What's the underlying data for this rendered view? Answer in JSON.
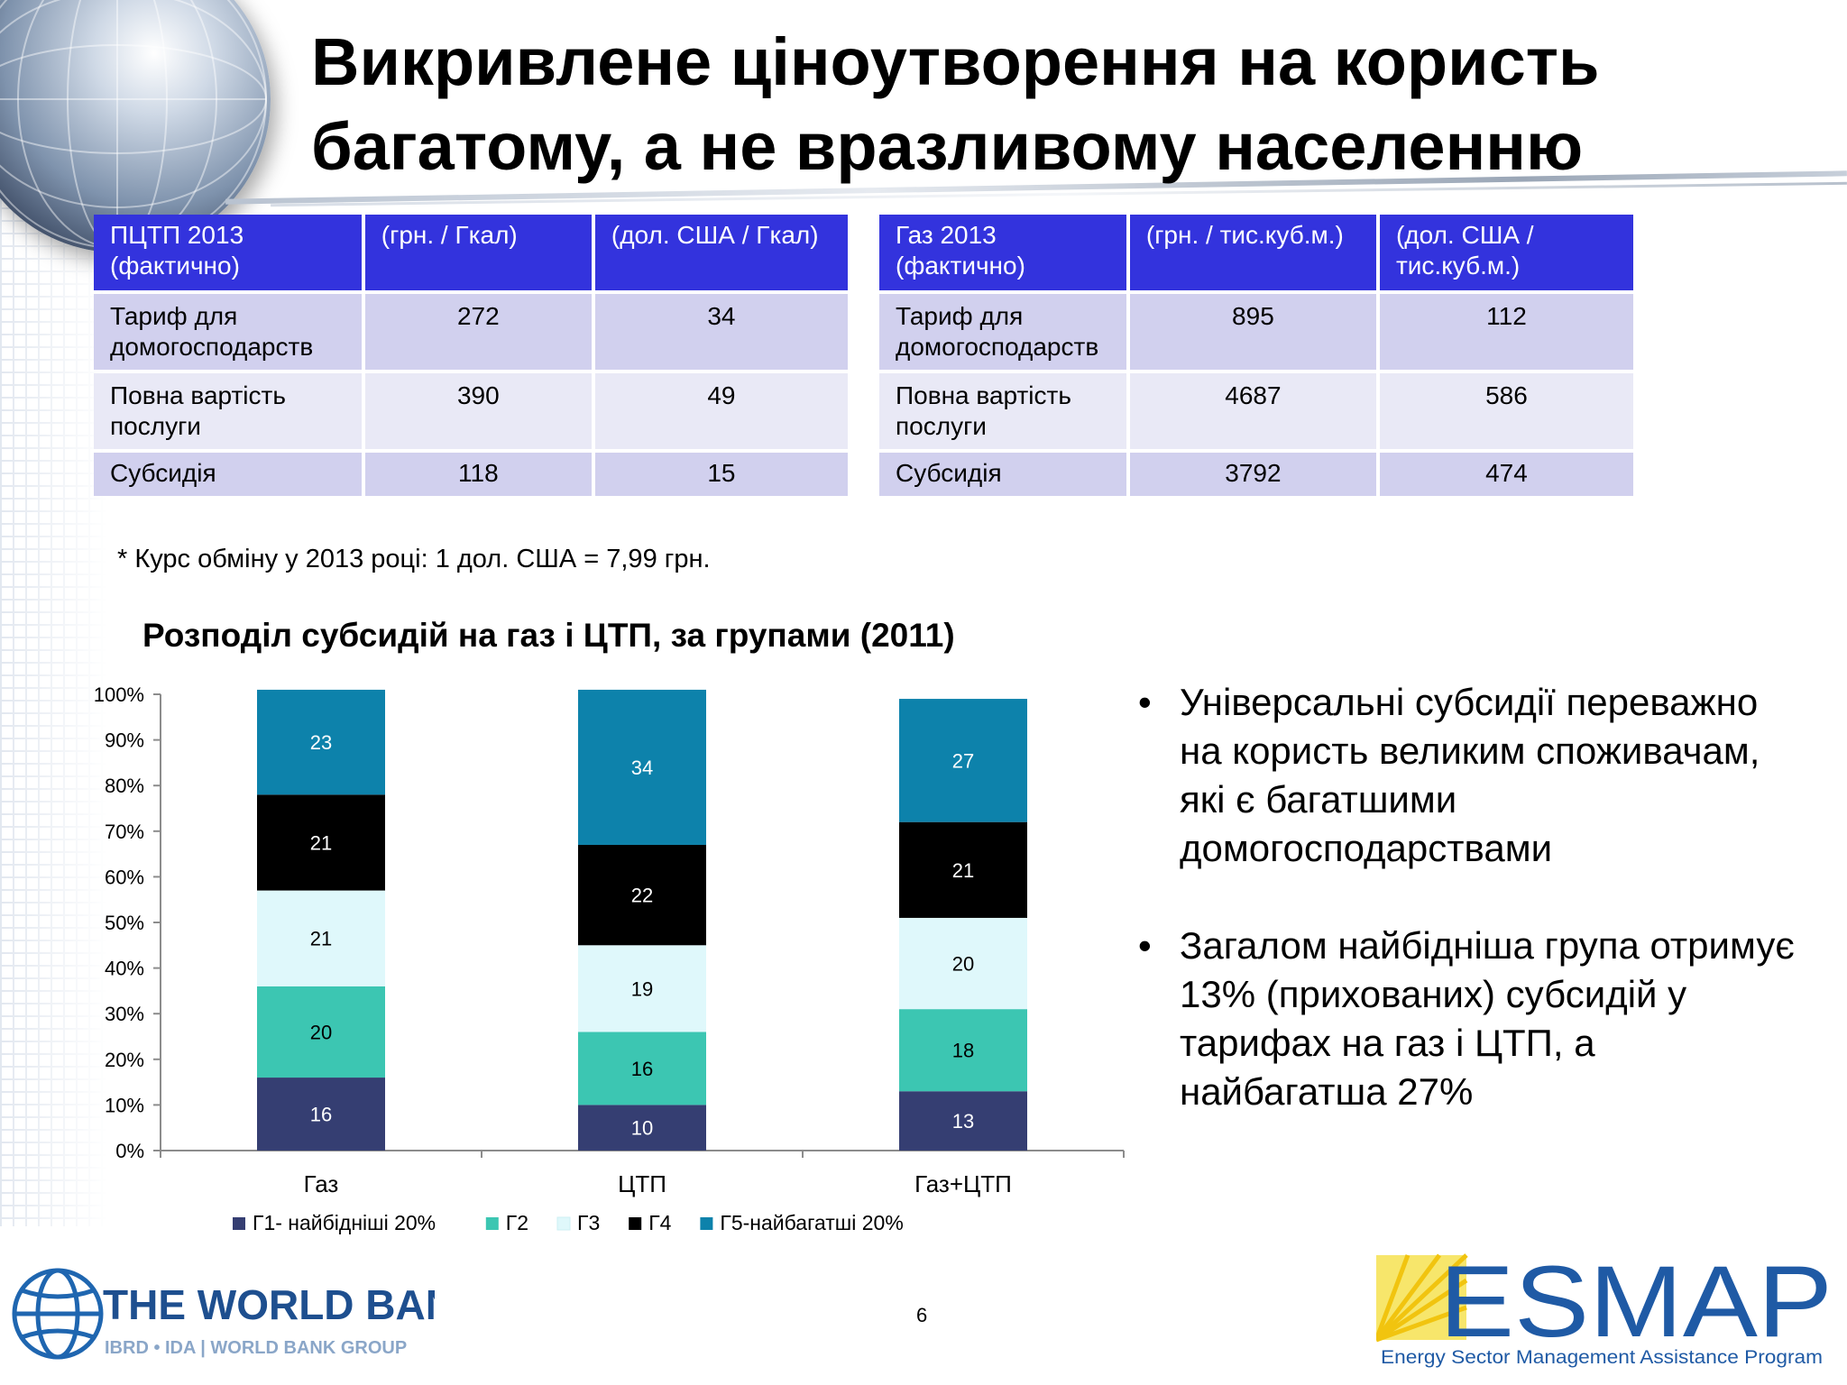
{
  "title": "Викривлене ціноутворення на користь багатому, а не вразливому населенню",
  "table_heat": {
    "headers": [
      "ПЦТП 2013 (фактично)",
      "(грн. / Гкал)",
      "(дол. США / Гкал)"
    ],
    "rows": [
      [
        "Тариф для домогосподарств",
        "272",
        "34"
      ],
      [
        "Повна вартість послуги",
        "390",
        "49"
      ],
      [
        "Субсидія",
        "118",
        "15"
      ]
    ]
  },
  "table_gas": {
    "headers": [
      "Газ 2013 (фактично)",
      "(грн. / тис.куб.м.)",
      "(дол. США / тис.куб.м.)"
    ],
    "rows": [
      [
        "Тариф для домогосподарств",
        "895",
        "112"
      ],
      [
        "Повна вартість послуги",
        "4687",
        "586"
      ],
      [
        "Субсидія",
        "3792",
        "474"
      ]
    ]
  },
  "footnote": "* Курс обміну у 2013 році: 1 дол. США = 7,99 грн.",
  "chart_data": {
    "type": "bar",
    "stacked": true,
    "title": "Розподіл субсидій на газ і ЦТП, за групами (2011)",
    "categories": [
      "Газ",
      "ЦТП",
      "Газ+ЦТП"
    ],
    "series": [
      {
        "name": "Г1- найбідніші 20%",
        "values": [
          16,
          10,
          13
        ],
        "color": "#353e72"
      },
      {
        "name": "Г2",
        "values": [
          20,
          16,
          18
        ],
        "color": "#3cc6b2"
      },
      {
        "name": "Г3",
        "values": [
          21,
          19,
          20
        ],
        "color": "#dff8fb"
      },
      {
        "name": "Г4",
        "values": [
          21,
          22,
          21
        ],
        "color": "#000000"
      },
      {
        "name": "Г5-найбагатші 20%",
        "values": [
          23,
          34,
          27
        ],
        "color": "#0d82ab"
      }
    ],
    "y_ticks": [
      "0%",
      "10%",
      "20%",
      "30%",
      "40%",
      "50%",
      "60%",
      "70%",
      "80%",
      "90%",
      "100%"
    ],
    "ylim": [
      0,
      100
    ],
    "legend": "bottom"
  },
  "bullets": [
    "Універсальні субсидії переважно на користь великим споживачам, які є багатшими домогосподарствами",
    "Загалом найбідніша група отримує 13% (прихованих) субсидій у тарифах на газ і ЦТП, а найбагатша 27%"
  ],
  "worldbank": {
    "name": "THE WORLD BANK",
    "sub": "IBRD • IDA | WORLD BANK GROUP"
  },
  "page_number": "6",
  "esmap": {
    "name": "ESMAP",
    "sub": "Energy Sector Management Assistance Program"
  }
}
